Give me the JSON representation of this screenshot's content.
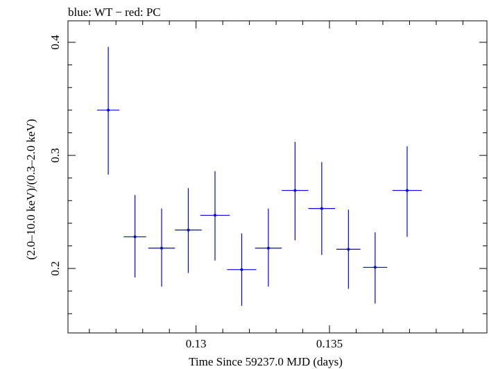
{
  "chart_data": {
    "type": "scatter",
    "title": "blue: WT − red: PC",
    "xlabel": "Time Since 59237.0 MJD (days)",
    "ylabel": "(2.0–10.0 keV)/(0.3–2.0 keV)",
    "xlim": [
      0.1252,
      0.1409
    ],
    "ylim": [
      0.143,
      0.419
    ],
    "x_major_ticks": [
      0.13,
      0.135
    ],
    "x_major_tick_labels": [
      "0.13",
      "0.135"
    ],
    "x_minor_ticks": [
      0.126,
      0.127,
      0.128,
      0.129,
      0.131,
      0.132,
      0.133,
      0.134,
      0.136,
      0.137,
      0.138,
      0.139,
      0.14
    ],
    "y_major_ticks": [
      0.2,
      0.3,
      0.4
    ],
    "y_major_tick_labels": [
      "0.2",
      "0.3",
      "0.4"
    ],
    "y_minor_ticks": [
      0.16,
      0.18,
      0.22,
      0.24,
      0.26,
      0.28,
      0.32,
      0.34,
      0.36,
      0.38
    ],
    "grid": false,
    "series": [
      {
        "name": "WT",
        "color": "#0000ee",
        "points": [
          {
            "x": 0.12671,
            "y": 0.34,
            "xerr": 0.00042,
            "ylo": 0.283,
            "yhi": 0.396
          },
          {
            "x": 0.12771,
            "y": 0.228,
            "xerr": 0.00042,
            "ylo": 0.192,
            "yhi": 0.265
          },
          {
            "x": 0.12871,
            "y": 0.218,
            "xerr": 0.0005,
            "ylo": 0.184,
            "yhi": 0.253
          },
          {
            "x": 0.12971,
            "y": 0.234,
            "xerr": 0.0005,
            "ylo": 0.196,
            "yhi": 0.271
          },
          {
            "x": 0.13071,
            "y": 0.247,
            "xerr": 0.00055,
            "ylo": 0.207,
            "yhi": 0.286
          },
          {
            "x": 0.13171,
            "y": 0.199,
            "xerr": 0.00055,
            "ylo": 0.167,
            "yhi": 0.231
          },
          {
            "x": 0.13271,
            "y": 0.218,
            "xerr": 0.0005,
            "ylo": 0.184,
            "yhi": 0.253
          },
          {
            "x": 0.13371,
            "y": 0.269,
            "xerr": 0.0005,
            "ylo": 0.225,
            "yhi": 0.312
          },
          {
            "x": 0.13471,
            "y": 0.253,
            "xerr": 0.0005,
            "ylo": 0.212,
            "yhi": 0.294
          },
          {
            "x": 0.13571,
            "y": 0.217,
            "xerr": 0.00045,
            "ylo": 0.182,
            "yhi": 0.252
          },
          {
            "x": 0.13671,
            "y": 0.201,
            "xerr": 0.00045,
            "ylo": 0.169,
            "yhi": 0.232
          },
          {
            "x": 0.13791,
            "y": 0.269,
            "xerr": 0.00055,
            "ylo": 0.228,
            "yhi": 0.308
          }
        ]
      }
    ]
  }
}
